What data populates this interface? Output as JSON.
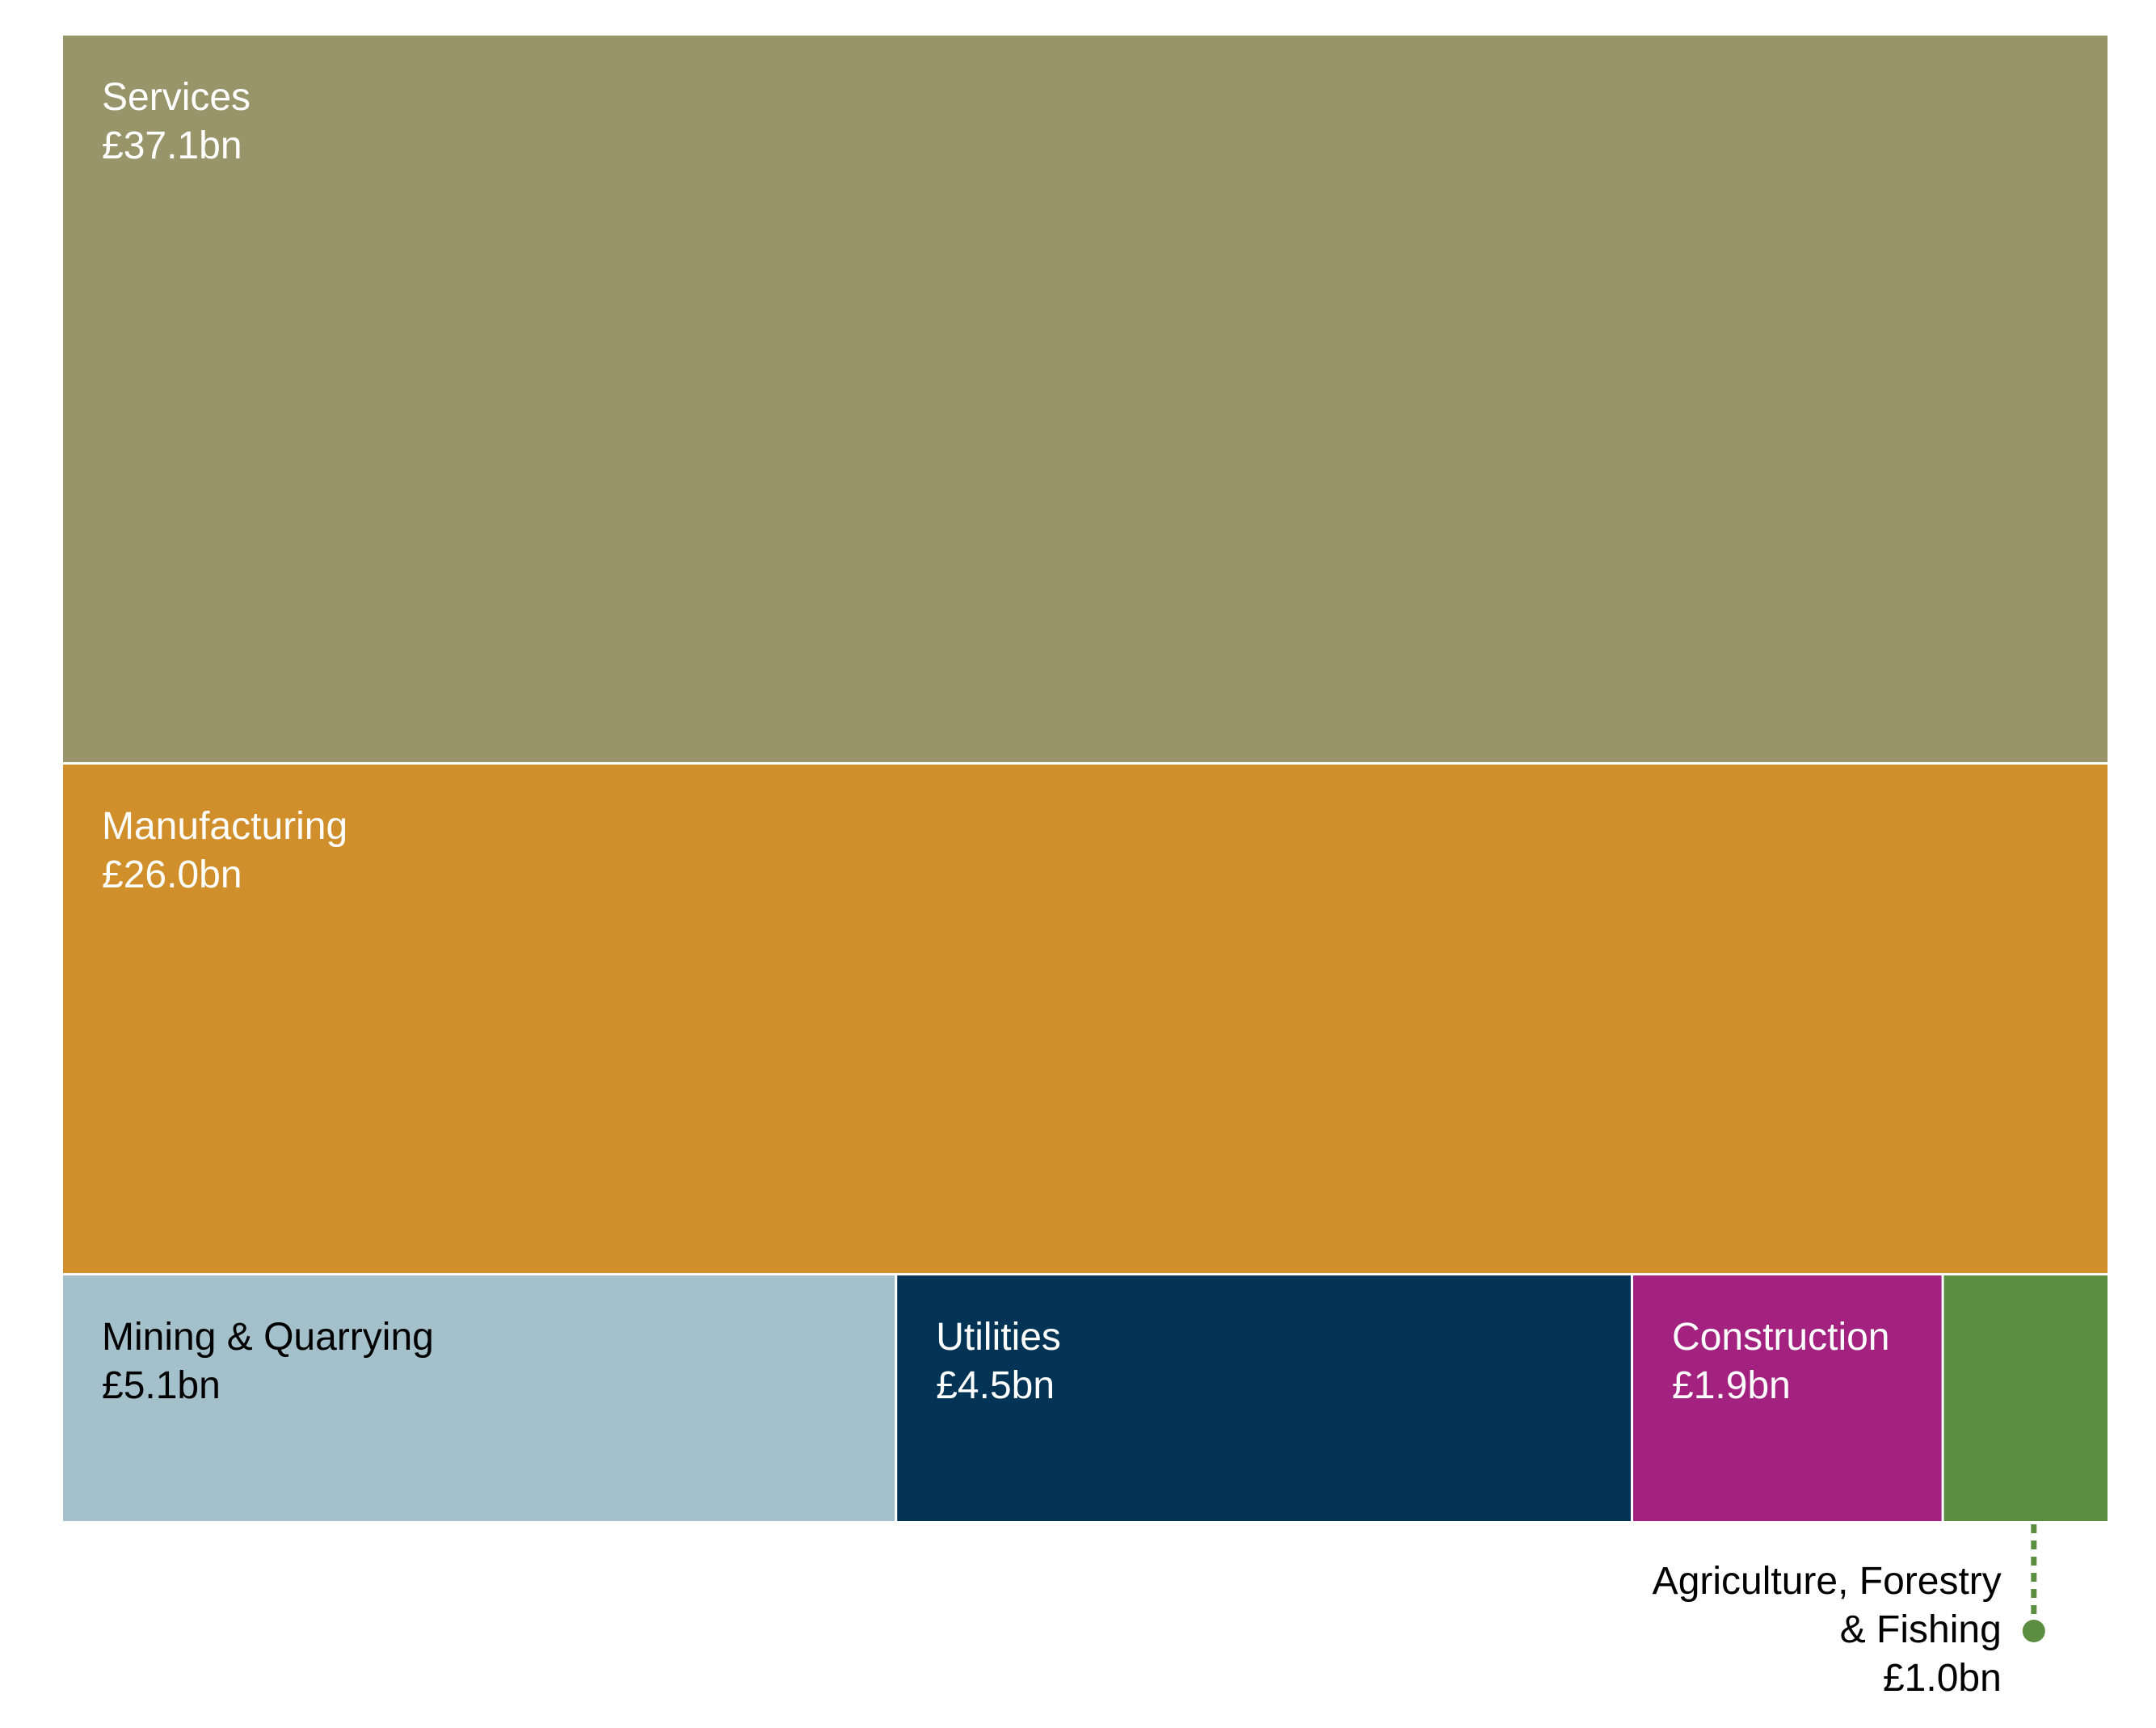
{
  "chart_data": {
    "type": "treemap",
    "categories": [
      "Services",
      "Manufacturing",
      "Mining & Quarrying",
      "Utilities",
      "Construction",
      "Agriculture, Forestry & Fishing"
    ],
    "values": [
      37.1,
      26.0,
      5.1,
      4.5,
      1.9,
      1.0
    ],
    "unit": "£bn",
    "items": [
      {
        "name": "Services",
        "value": 37.1,
        "value_label": "£37.1bn",
        "color": "#979569",
        "text_color": "#ffffff"
      },
      {
        "name": "Manufacturing",
        "value": 26.0,
        "value_label": "£26.0bn",
        "color": "#d08f2a",
        "text_color": "#ffffff"
      },
      {
        "name": "Mining & Quarrying",
        "value": 5.1,
        "value_label": "£5.1bn",
        "color": "#a3c0cb",
        "text_color": "#000000"
      },
      {
        "name": "Utilities",
        "value": 4.5,
        "value_label": "£4.5bn",
        "color": "#033456",
        "text_color": "#ffffff"
      },
      {
        "name": "Construction",
        "value": 1.9,
        "value_label": "£1.9bn",
        "color": "#a32280",
        "text_color": "#ffffff"
      },
      {
        "name": "Agriculture, Forestry & Fishing",
        "name_lines": [
          "Agriculture, Forestry",
          "& Fishing"
        ],
        "value": 1.0,
        "value_label": "£1.0bn",
        "color": "#5b8e40",
        "text_color": "#000000",
        "label_outside": true
      }
    ],
    "title": "",
    "legend": "none"
  }
}
